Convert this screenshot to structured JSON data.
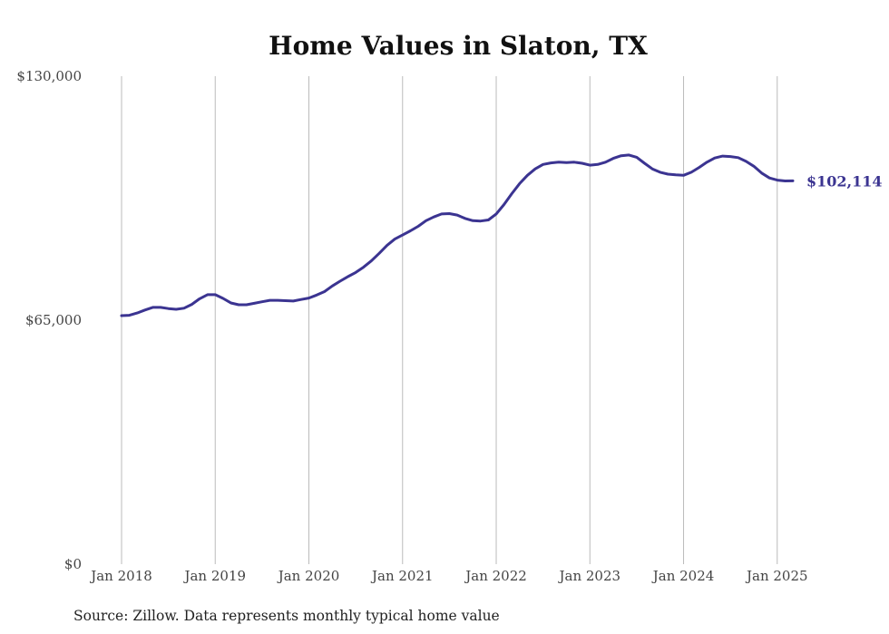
{
  "chart_data": {
    "type": "line",
    "title": "Home Values in Slaton, TX",
    "xlabel": "",
    "ylabel": "",
    "ylim": [
      0,
      130000
    ],
    "y_ticks": [
      {
        "value": 0,
        "label": "$0"
      },
      {
        "value": 65000,
        "label": "$65,000"
      },
      {
        "value": 130000,
        "label": "$130,000"
      }
    ],
    "x_ticks": [
      {
        "value": 2018,
        "label": "Jan 2018"
      },
      {
        "value": 2019,
        "label": "Jan 2019"
      },
      {
        "value": 2020,
        "label": "Jan 2020"
      },
      {
        "value": 2021,
        "label": "Jan 2021"
      },
      {
        "value": 2022,
        "label": "Jan 2022"
      },
      {
        "value": 2023,
        "label": "Jan 2023"
      },
      {
        "value": 2024,
        "label": "Jan 2024"
      },
      {
        "value": 2025,
        "label": "Jan 2025"
      }
    ],
    "xlim": [
      2018,
      2025.1667
    ],
    "grid": "vertical",
    "line_color": "#3b3491",
    "end_label": "$102,114",
    "source": "Source: Zillow. Data represents monthly typical home value",
    "series": [
      {
        "x": [
          2018.0,
          2018.0833,
          2018.1667,
          2018.25,
          2018.3333,
          2018.4167,
          2018.5,
          2018.5833,
          2018.6667,
          2018.75,
          2018.8333,
          2018.9167,
          2019.0,
          2019.0833,
          2019.1667,
          2019.25,
          2019.3333,
          2019.4167,
          2019.5,
          2019.5833,
          2019.6667,
          2019.75,
          2019.8333,
          2019.9167,
          2020.0,
          2020.0833,
          2020.1667,
          2020.25,
          2020.3333,
          2020.4167,
          2020.5,
          2020.5833,
          2020.6667,
          2020.75,
          2020.8333,
          2020.9167,
          2021.0,
          2021.0833,
          2021.1667,
          2021.25,
          2021.3333,
          2021.4167,
          2021.5,
          2021.5833,
          2021.6667,
          2021.75,
          2021.8333,
          2021.9167,
          2022.0,
          2022.0833,
          2022.1667,
          2022.25,
          2022.3333,
          2022.4167,
          2022.5,
          2022.5833,
          2022.6667,
          2022.75,
          2022.8333,
          2022.9167,
          2023.0,
          2023.0833,
          2023.1667,
          2023.25,
          2023.3333,
          2023.4167,
          2023.5,
          2023.5833,
          2023.6667,
          2023.75,
          2023.8333,
          2023.9167,
          2024.0,
          2024.0833,
          2024.1667,
          2024.25,
          2024.3333,
          2024.4167,
          2024.5,
          2024.5833,
          2024.6667,
          2024.75,
          2024.8333,
          2024.9167,
          2025.0,
          2025.0833,
          2025.1667
        ],
        "values": [
          66200,
          66300,
          66900,
          67700,
          68400,
          68400,
          68100,
          67900,
          68200,
          69200,
          70700,
          71800,
          71800,
          70800,
          69600,
          69100,
          69100,
          69500,
          69900,
          70300,
          70300,
          70200,
          70100,
          70500,
          70900,
          71700,
          72600,
          74100,
          75400,
          76600,
          77700,
          79100,
          80800,
          82800,
          84900,
          86600,
          87700,
          88800,
          90000,
          91500,
          92500,
          93300,
          93400,
          93000,
          92100,
          91500,
          91400,
          91700,
          93300,
          95800,
          98700,
          101400,
          103600,
          105300,
          106500,
          106900,
          107100,
          107000,
          107100,
          106800,
          106300,
          106500,
          107100,
          108100,
          108800,
          109000,
          108400,
          106800,
          105300,
          104400,
          103900,
          103700,
          103600,
          104400,
          105700,
          107100,
          108200,
          108700,
          108600,
          108300,
          107300,
          106000,
          104200,
          102900,
          102300,
          102100,
          102114
        ]
      }
    ]
  }
}
